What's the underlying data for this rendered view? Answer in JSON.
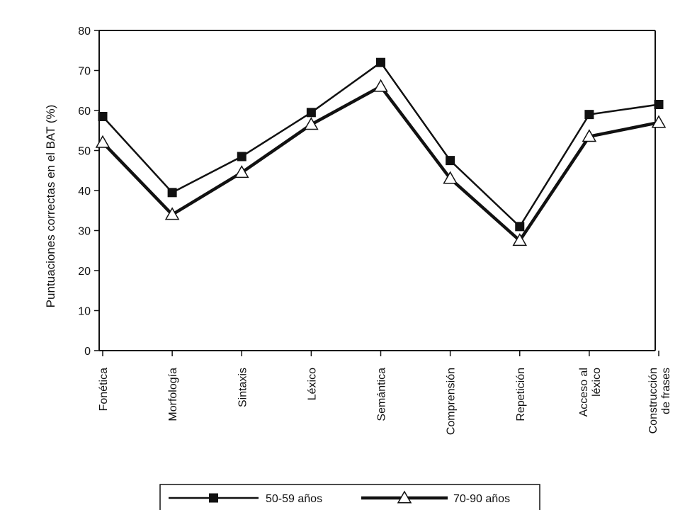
{
  "chart_data": {
    "type": "line",
    "title": "",
    "xlabel": "",
    "ylabel": "Puntuaciones correctas en el BAT (%)",
    "ylim": [
      0,
      80
    ],
    "yticks": [
      0,
      10,
      20,
      30,
      40,
      50,
      60,
      70,
      80
    ],
    "grid": false,
    "legend_position": "bottom",
    "categories": [
      [
        "Fonética"
      ],
      [
        "Morfología"
      ],
      [
        "Sintaxis"
      ],
      [
        "Léxico"
      ],
      [
        "Semántica"
      ],
      [
        "Comprensión"
      ],
      [
        "Repetición"
      ],
      [
        "Acceso al",
        "léxico"
      ],
      [
        "Construcción",
        "de frases"
      ]
    ],
    "series": [
      {
        "name": "50-59 años",
        "marker": "filled-square",
        "color": "#111111",
        "values": [
          58.5,
          39.5,
          48.5,
          59.5,
          72,
          47.5,
          31,
          59,
          61.5
        ]
      },
      {
        "name": "70-90 años",
        "marker": "open-triangle",
        "color": "#111111",
        "values": [
          52,
          34,
          44.5,
          56.5,
          66,
          43,
          27.5,
          53.5,
          57
        ]
      }
    ]
  }
}
